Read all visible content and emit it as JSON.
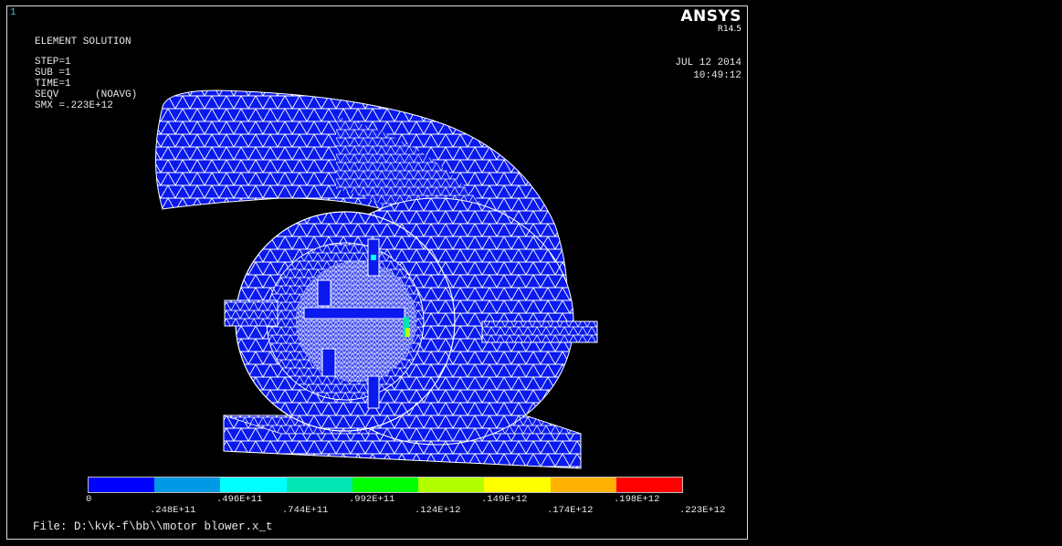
{
  "window_number": "1",
  "header": {
    "title": "ELEMENT SOLUTION",
    "step": "STEP=1",
    "sub": "SUB =1",
    "time_step": "TIME=1",
    "result_item": "SEQV      (NOAVG)",
    "smx": "SMX =.223E+12"
  },
  "brand": {
    "name": "ANSYS",
    "release": "R14.5"
  },
  "datetime": {
    "date": "JUL 12 2014",
    "time": "10:49:12"
  },
  "legend": {
    "colors": [
      "#0000ff",
      "#0099e6",
      "#00ffff",
      "#00e6b3",
      "#00ff00",
      "#b3ff00",
      "#ffff00",
      "#ffb300",
      "#ff0000"
    ],
    "upper_labels": [
      "0",
      ".496E+11",
      ".992E+11",
      ".149E+12",
      ".198E+12"
    ],
    "lower_labels": [
      ".248E+11",
      ".744E+11",
      ".124E+12",
      ".174E+12",
      ".223E+12"
    ]
  },
  "file_label": "File: D:\\kvk-f\\bb\\\\motor blower.x_t"
}
